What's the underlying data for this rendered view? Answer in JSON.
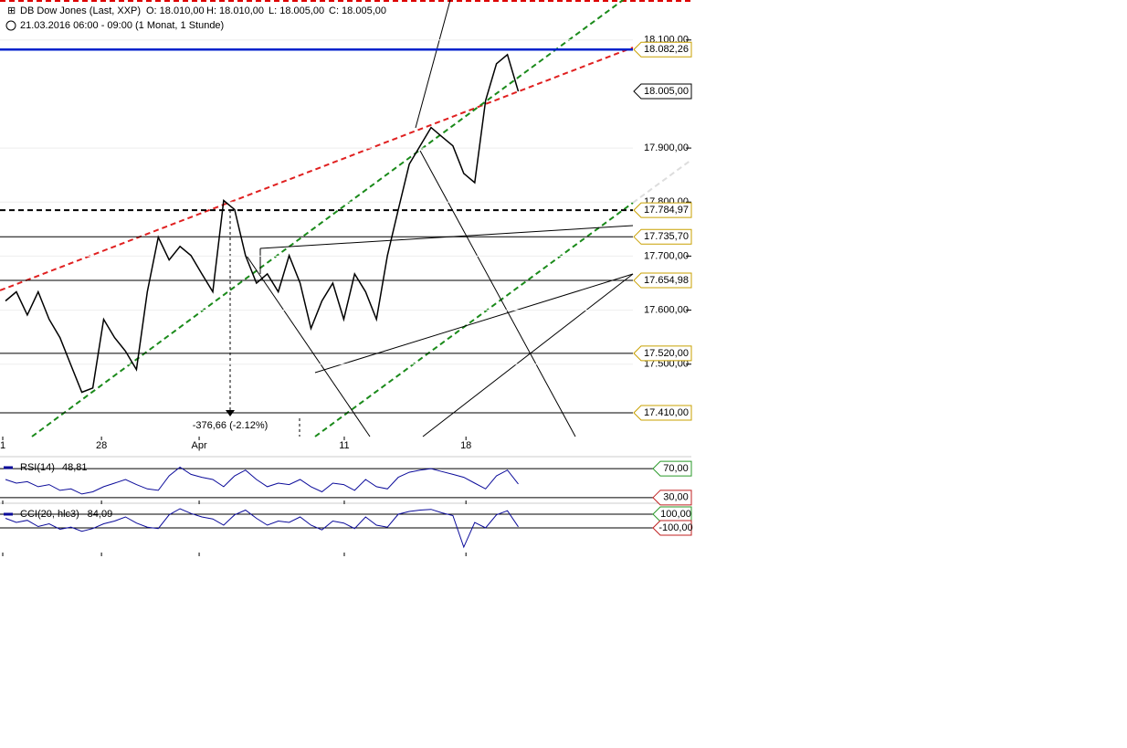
{
  "header": {
    "instrument": "DB Dow Jones (Last, XXP)",
    "open": "O: 18.010,00",
    "high": "H: 18.010,00",
    "low": "L: 18.005,00",
    "close": "C: 18.005,00",
    "period": "21.03.2016 06:00 - 09:00 (1 Monat, 1 Stunde)"
  },
  "chart_data": [
    {
      "type": "line",
      "grid": true,
      "annotation": "-376,66 (-2.12%)",
      "x": [
        1,
        3,
        5,
        7,
        9,
        11,
        13,
        15,
        17,
        19,
        21,
        23,
        25,
        27,
        29,
        31,
        33,
        35,
        37,
        39,
        41,
        43,
        45,
        47,
        49,
        51,
        53,
        55,
        57,
        59,
        61,
        63,
        65,
        67,
        69,
        71,
        73,
        75,
        77,
        79,
        81,
        83,
        85,
        87,
        89,
        91,
        93,
        95
      ],
      "xlim": [
        0,
        116
      ],
      "xticks": [
        {
          "value": 0.5,
          "label": "1"
        },
        {
          "value": 18.6,
          "label": "28"
        },
        {
          "value": 36.5,
          "label": "Apr"
        },
        {
          "value": 63.1,
          "label": "11"
        },
        {
          "value": 85.4,
          "label": "18"
        }
      ],
      "series": [
        {
          "name": "DB Dow Jones",
          "color": "#000000",
          "values": [
            17617,
            17634,
            17591,
            17634,
            17583,
            17549,
            17498,
            17448,
            17456,
            17583,
            17549,
            17524,
            17490,
            17634,
            17735,
            17693,
            17718,
            17701,
            17667,
            17634,
            17803,
            17786,
            17701,
            17650,
            17667,
            17634,
            17701,
            17650,
            17566,
            17617,
            17650,
            17583,
            17667,
            17634,
            17583,
            17701,
            17786,
            17870,
            17904,
            17938,
            17921,
            17904,
            17853,
            17836,
            17988,
            18056,
            18073,
            18005
          ]
        }
      ],
      "ylim": [
        17366,
        18174
      ],
      "yticks": [
        {
          "value": 17500,
          "label": "17.500,00"
        },
        {
          "value": 17600,
          "label": "17.600,00"
        },
        {
          "value": 17700,
          "label": "17.700,00"
        },
        {
          "value": 17800,
          "label": "17.800,00"
        },
        {
          "value": 17900,
          "label": "17.900,00"
        },
        {
          "value": 18100,
          "label": "18.100,00"
        }
      ],
      "levels": [
        {
          "value": 18082.26,
          "label": "18.082,26",
          "color": "#0022cc",
          "style": "solid"
        },
        {
          "value": 18005.0,
          "label": "18.005,00",
          "color": "#000000",
          "style": "none"
        },
        {
          "value": 17784.97,
          "label": "17.784,97",
          "color": "#000000",
          "style": "dashed"
        },
        {
          "value": 17735.7,
          "label": "17.735,70",
          "color": "#000000",
          "style": "thin"
        },
        {
          "value": 17654.98,
          "label": "17.654,98",
          "color": "#000000",
          "style": "thin"
        },
        {
          "value": 17520.0,
          "label": "17.520,00",
          "color": "#000000",
          "style": "thin"
        },
        {
          "value": 17410.0,
          "label": "17.410,00",
          "color": "#000000",
          "style": "thin"
        }
      ]
    },
    {
      "type": "line",
      "series": [
        {
          "name": "RSI(14)",
          "last_label": "48,81",
          "color": "#0b0b9a",
          "values": [
            55,
            50,
            52,
            45,
            48,
            40,
            42,
            35,
            38,
            45,
            50,
            55,
            48,
            42,
            40,
            60,
            72,
            62,
            58,
            55,
            45,
            60,
            68,
            55,
            45,
            50,
            48,
            55,
            45,
            38,
            50,
            48,
            40,
            55,
            45,
            42,
            58,
            65,
            68,
            70,
            66,
            62,
            58,
            50,
            42,
            60,
            68,
            48.81
          ]
        }
      ],
      "ylim": [
        26,
        84
      ],
      "yticks": [
        {
          "value": 70,
          "label": "70,00",
          "color": "#2a9a2a"
        },
        {
          "value": 30,
          "label": "30,00",
          "color": "#c02020"
        }
      ]
    },
    {
      "type": "line",
      "series": [
        {
          "name": "CCI(20, hlc3)",
          "last_label": "-84,09",
          "color": "#0b0b9a",
          "values": [
            40,
            -20,
            10,
            -80,
            -40,
            -120,
            -90,
            -150,
            -110,
            -40,
            0,
            60,
            -30,
            -90,
            -110,
            90,
            180,
            110,
            60,
            30,
            -60,
            90,
            160,
            40,
            -60,
            0,
            -20,
            60,
            -60,
            -130,
            0,
            -30,
            -110,
            60,
            -60,
            -90,
            100,
            140,
            160,
            170,
            120,
            80,
            -380,
            -20,
            -100,
            90,
            150,
            -84.09
          ]
        }
      ],
      "ylim": [
        -460,
        233
      ],
      "yticks": [
        {
          "value": 100,
          "label": "100,00",
          "color": "#2a9a2a"
        },
        {
          "value": -100,
          "label": "-100,00",
          "color": "#c02020"
        }
      ]
    }
  ]
}
